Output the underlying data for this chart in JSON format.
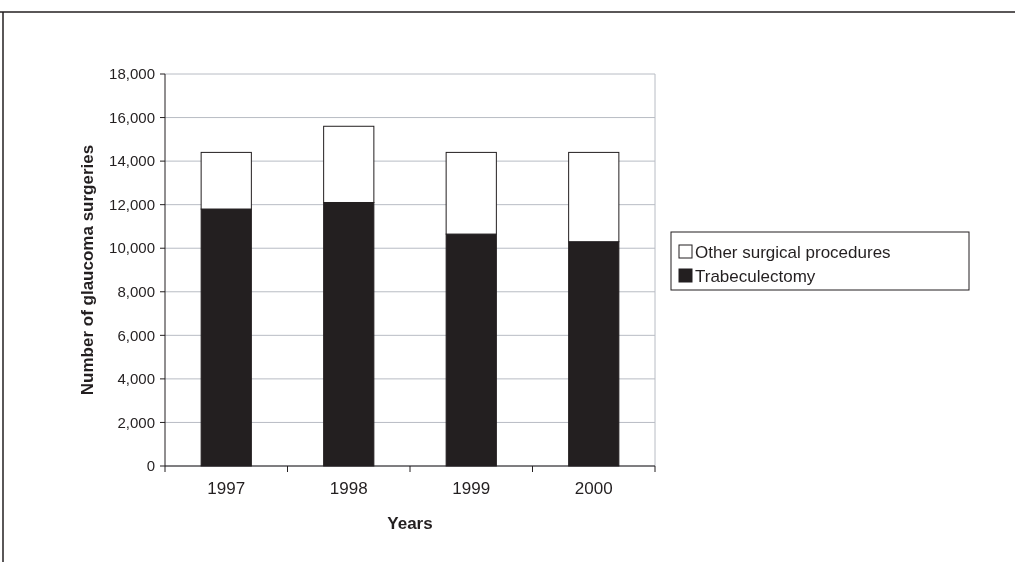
{
  "chart_data": {
    "type": "bar",
    "stacked": true,
    "xlabel": "Years",
    "ylabel": "Number of glaucoma surgeries",
    "categories": [
      "1997",
      "1998",
      "1999",
      "2000"
    ],
    "series": [
      {
        "name": "Trabeculectomy",
        "color": "#231f20",
        "values": [
          11800,
          12100,
          10650,
          10300
        ]
      },
      {
        "name": "Other surgical procedures",
        "color": "#ffffff",
        "values": [
          2600,
          3500,
          3750,
          4100
        ]
      }
    ],
    "ylim": [
      0,
      18000
    ],
    "yticks": [
      {
        "value": 0,
        "label": "0"
      },
      {
        "value": 2000,
        "label": "2,000"
      },
      {
        "value": 4000,
        "label": "4,000"
      },
      {
        "value": 6000,
        "label": "6,000"
      },
      {
        "value": 8000,
        "label": "8,000"
      },
      {
        "value": 10000,
        "label": "10,000"
      },
      {
        "value": 12000,
        "label": "12,000"
      },
      {
        "value": 14000,
        "label": "14,000"
      },
      {
        "value": 16000,
        "label": "16,000"
      },
      {
        "value": 18000,
        "label": "18,000"
      }
    ],
    "grid": "y",
    "legend": "right"
  }
}
